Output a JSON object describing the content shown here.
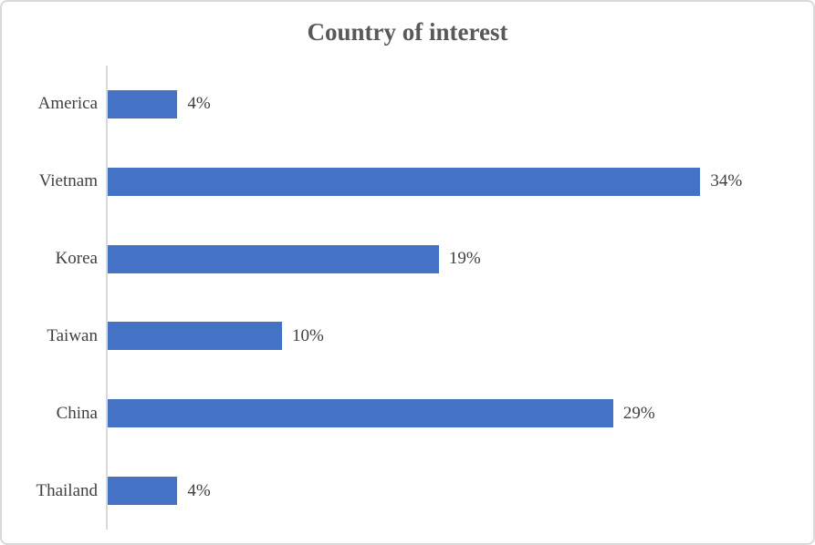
{
  "chart_data": {
    "type": "bar",
    "orientation": "horizontal",
    "title": "Country of interest",
    "categories": [
      "America",
      "Vietnam",
      "Korea",
      "Taiwan",
      "China",
      "Thailand"
    ],
    "values": [
      4,
      34,
      19,
      10,
      29,
      4
    ],
    "value_labels": [
      "4%",
      "34%",
      "19%",
      "10%",
      "29%",
      "4%"
    ],
    "xlabel": "",
    "ylabel": "",
    "xlim": [
      0,
      40
    ],
    "grid": false,
    "legend": false,
    "data_labels_position": "outside-end",
    "bar_color": "#4472C4",
    "axis_line_color": "#D9D9D9",
    "border_color": "#D9D9D9",
    "title_color": "#595959",
    "label_color": "#404040"
  }
}
